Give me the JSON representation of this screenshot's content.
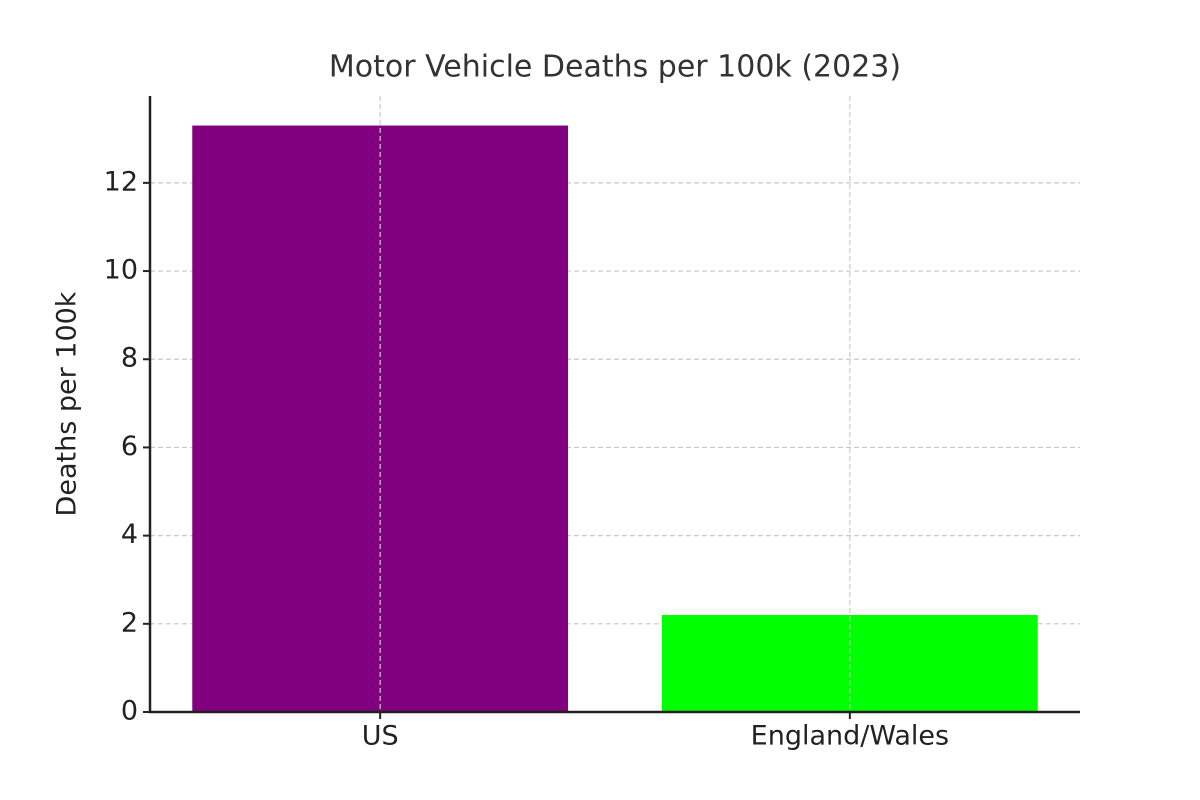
{
  "chart_data": {
    "type": "bar",
    "title": "Motor Vehicle Deaths per 100k (2023)",
    "y_label": "Deaths per 100k",
    "categories": [
      "US",
      "England/Wales"
    ],
    "values": [
      13.3,
      2.2
    ],
    "colors": [
      "#800080",
      "#00ff00"
    ],
    "ylim": [
      0,
      13.97
    ],
    "yticks": [
      0,
      2,
      4,
      6,
      8,
      10,
      12
    ],
    "grid": true
  }
}
